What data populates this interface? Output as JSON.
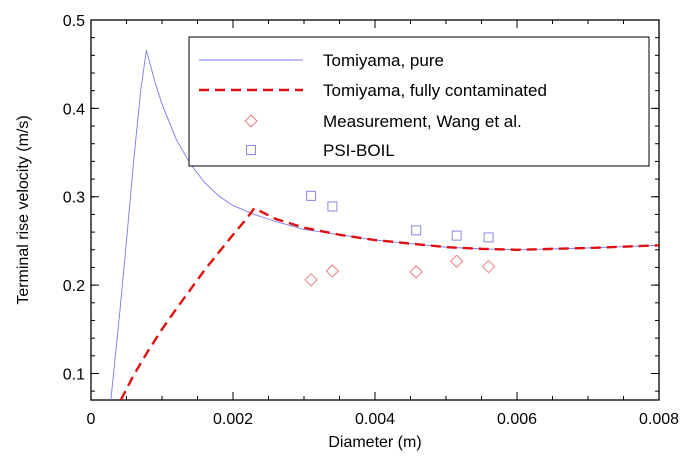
{
  "chart_data": {
    "type": "line",
    "title": "",
    "xlabel": "Diameter (m)",
    "ylabel": "Terminal rise velocity (m/s)",
    "xlim": [
      0,
      0.008
    ],
    "ylim": [
      0.07,
      0.5
    ],
    "x_ticks": [
      0,
      0.002,
      0.004,
      0.006,
      0.008
    ],
    "x_tick_labels": [
      "0",
      "0.002",
      "0.004",
      "0.006",
      "0.008"
    ],
    "y_ticks": [
      0.1,
      0.2,
      0.3,
      0.4,
      0.5
    ],
    "y_tick_labels": [
      "0.1",
      "0.2",
      "0.3",
      "0.4",
      "0.5"
    ],
    "grid": false,
    "legend_position": "top-right",
    "series": [
      {
        "name": "Tomiyama, pure",
        "kind": "line",
        "style": "solid",
        "color": "#7b7bf0",
        "x": [
          0.00028,
          0.0004,
          0.0005,
          0.0006,
          0.0007,
          0.00078,
          0.0009,
          0.001,
          0.0012,
          0.0014,
          0.0016,
          0.0018,
          0.002,
          0.0023,
          0.0026,
          0.003,
          0.0035,
          0.004,
          0.0045,
          0.005,
          0.0055,
          0.006,
          0.007,
          0.008
        ],
        "y": [
          0.07,
          0.165,
          0.25,
          0.34,
          0.42,
          0.466,
          0.43,
          0.405,
          0.365,
          0.337,
          0.316,
          0.301,
          0.29,
          0.28,
          0.272,
          0.263,
          0.257,
          0.251,
          0.247,
          0.243,
          0.241,
          0.24,
          0.242,
          0.245
        ]
      },
      {
        "name": "Tomiyama, fully contaminated",
        "kind": "line",
        "style": "dashed",
        "color": "#e01010",
        "x": [
          0.00042,
          0.0006,
          0.0008,
          0.001,
          0.0012,
          0.0014,
          0.0016,
          0.0018,
          0.002,
          0.0022,
          0.0023,
          0.0026,
          0.003,
          0.0035,
          0.004,
          0.0045,
          0.005,
          0.0055,
          0.006,
          0.007,
          0.008
        ],
        "y": [
          0.07,
          0.098,
          0.125,
          0.15,
          0.173,
          0.195,
          0.217,
          0.237,
          0.257,
          0.276,
          0.287,
          0.275,
          0.265,
          0.257,
          0.251,
          0.247,
          0.243,
          0.241,
          0.24,
          0.242,
          0.245
        ]
      },
      {
        "name": "Measurement, Wang et al.",
        "kind": "scatter",
        "marker": "diamond",
        "color": "#e88080",
        "x": [
          0.0031,
          0.0034,
          0.00458,
          0.00515,
          0.0056
        ],
        "y": [
          0.206,
          0.216,
          0.215,
          0.227,
          0.221
        ]
      },
      {
        "name": "PSI-BOIL",
        "kind": "scatter",
        "marker": "square",
        "color": "#8888e8",
        "x": [
          0.0031,
          0.0034,
          0.00458,
          0.00515,
          0.0056
        ],
        "y": [
          0.301,
          0.289,
          0.262,
          0.256,
          0.254
        ]
      }
    ]
  }
}
